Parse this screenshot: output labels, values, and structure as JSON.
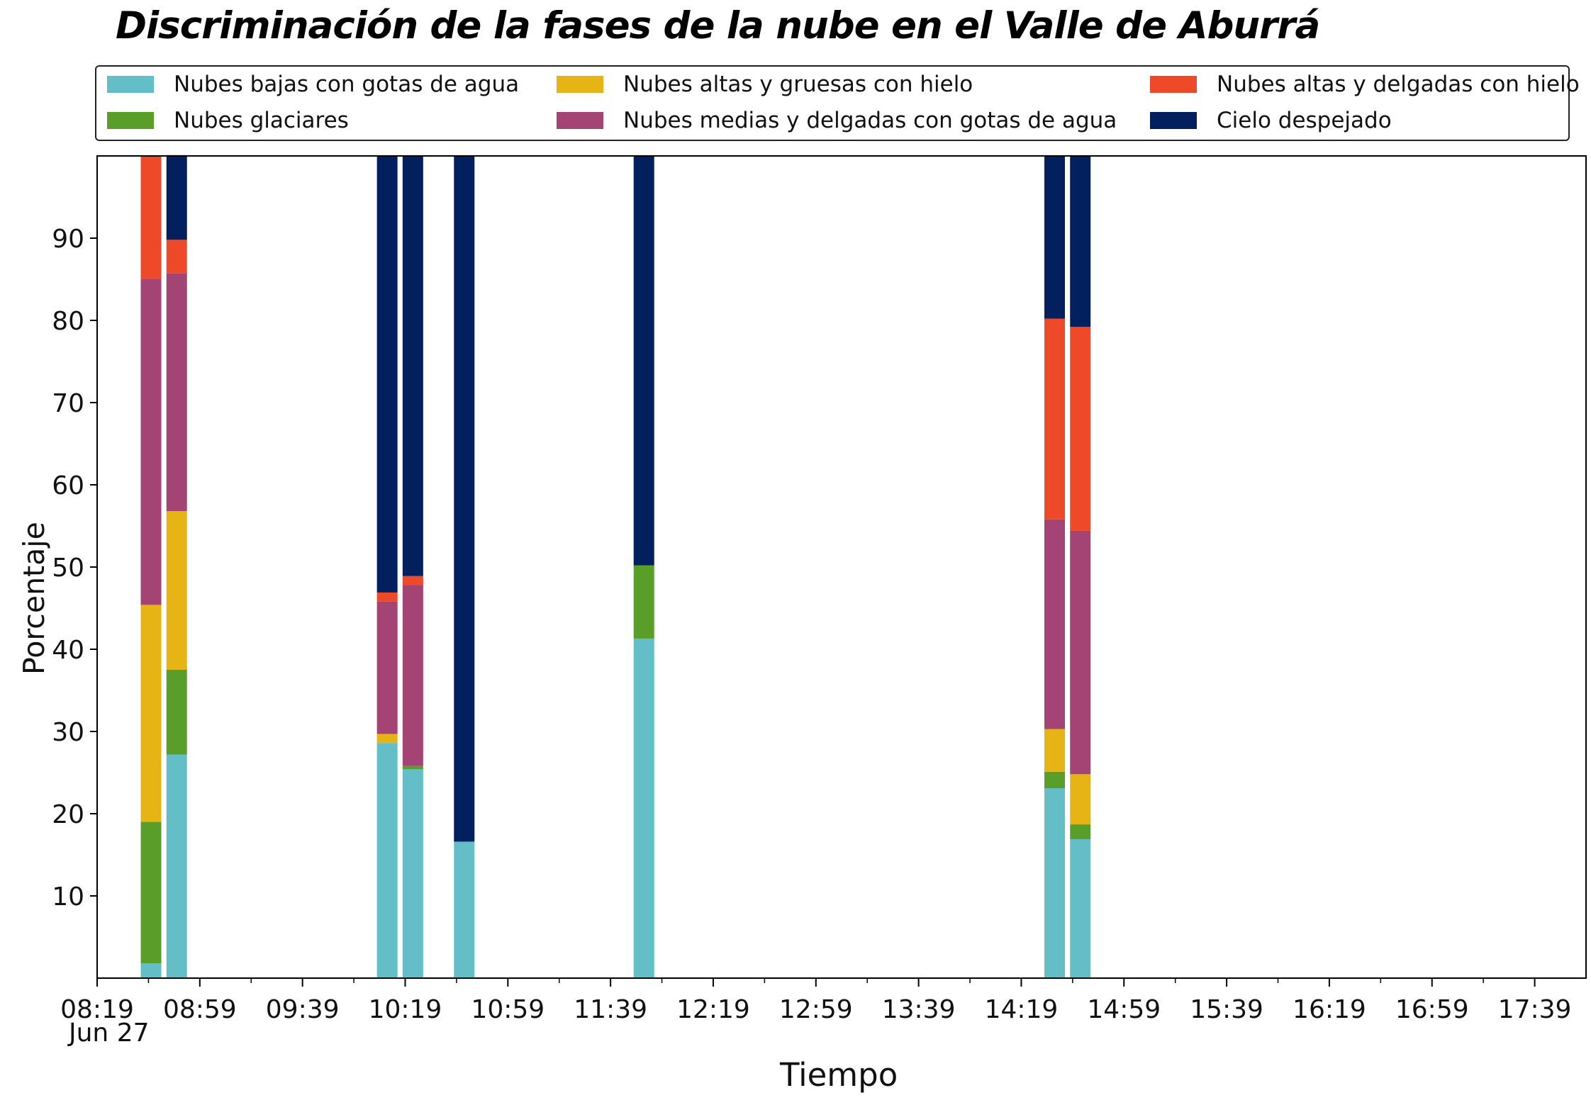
{
  "chart_data": {
    "type": "bar",
    "stacked": true,
    "title": "Discriminación de la fases de la nube en el Valle de Aburrá",
    "xlabel": "Tiempo",
    "ylabel": "Porcentaje",
    "ylim": [
      0,
      100
    ],
    "y_ticks": [
      10,
      20,
      30,
      40,
      50,
      60,
      70,
      80,
      90
    ],
    "x_time_range": [
      "08:19",
      "17:59"
    ],
    "x_ticks": [
      "08:19",
      "08:59",
      "09:39",
      "10:19",
      "10:59",
      "11:39",
      "12:19",
      "12:59",
      "13:39",
      "14:19",
      "14:59",
      "15:39",
      "16:19",
      "16:59",
      "17:39"
    ],
    "x_date_label": "Jun 27",
    "legend_position": "top",
    "grid": false,
    "times": [
      "08:40",
      "08:50",
      "10:12",
      "10:22",
      "10:42",
      "11:52",
      "14:32",
      "14:42"
    ],
    "series": [
      {
        "name": "Nubes bajas con gotas de agua",
        "color": "#63bec8",
        "values": [
          1.8,
          27.2,
          28.6,
          25.4,
          16.6,
          41.3,
          23.1,
          16.9
        ]
      },
      {
        "name": "Nubes glaciares",
        "color": "#5a9e2a",
        "values": [
          17.2,
          10.3,
          0,
          0.4,
          0,
          8.9,
          2.0,
          1.8
        ]
      },
      {
        "name": "Nubes altas y gruesas con hielo",
        "color": "#e6b414",
        "values": [
          26.4,
          19.3,
          1.1,
          0,
          0,
          0,
          5.2,
          6.1
        ]
      },
      {
        "name": "Nubes medias y delgadas con gotas de agua",
        "color": "#a34475",
        "values": [
          39.6,
          28.9,
          16.1,
          22.0,
          0,
          0,
          25.5,
          29.6
        ]
      },
      {
        "name": "Nubes altas y delgadas con hielo",
        "color": "#ee4a2a",
        "values": [
          15.0,
          4.1,
          1.1,
          1.1,
          0,
          0,
          24.4,
          24.8
        ]
      },
      {
        "name": "Cielo despejado",
        "color": "#02205d",
        "values": [
          0,
          10.3,
          53.1,
          51.1,
          83.4,
          49.8,
          19.8,
          20.8
        ]
      }
    ]
  }
}
